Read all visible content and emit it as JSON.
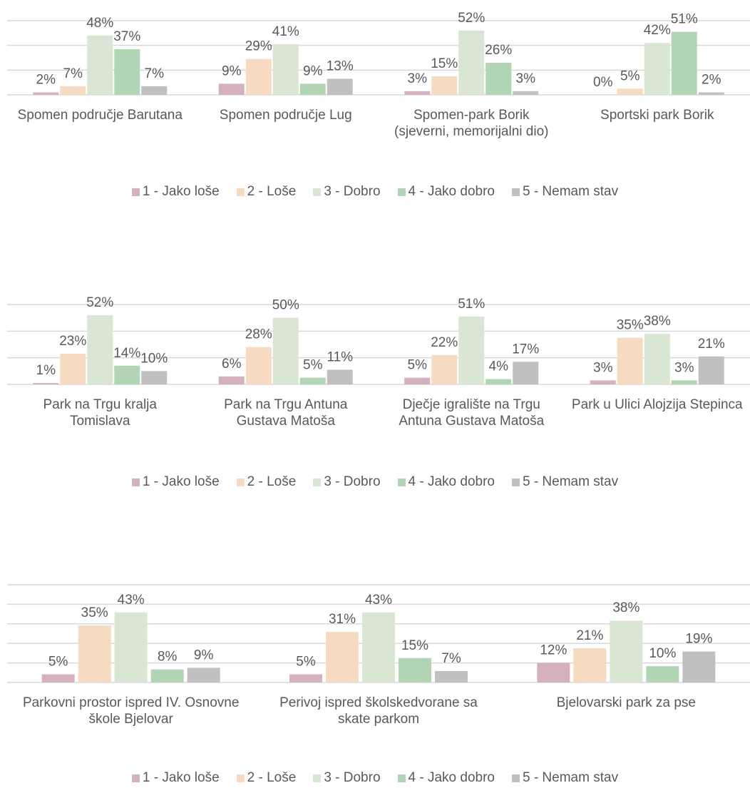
{
  "chart_data": [
    {
      "type": "bar",
      "categories": [
        "Spomen područje Barutana",
        "Spomen područje Lug",
        "Spomen-park Borik (sjeverni, memorijalni dio)",
        "Sportski park Borik"
      ],
      "series": [
        {
          "name": "1 - Jako loše",
          "color": "#d5b1bd",
          "values": [
            2,
            9,
            3,
            0
          ],
          "value_labels": [
            "2%",
            "9%",
            "3%",
            "0%"
          ]
        },
        {
          "name": "2 - Loše",
          "color": "#f6dbc2",
          "values": [
            7,
            29,
            15,
            5
          ],
          "value_labels": [
            "7%",
            "29%",
            "15%",
            "5%"
          ]
        },
        {
          "name": "3 - Dobro",
          "color": "#dae6d4",
          "values": [
            48,
            41,
            52,
            42
          ],
          "value_labels": [
            "48%",
            "41%",
            "52%",
            "42%"
          ]
        },
        {
          "name": "4 - Jako dobro",
          "color": "#b2d6b5",
          "values": [
            37,
            9,
            26,
            51
          ],
          "value_labels": [
            "37%",
            "9%",
            "26%",
            "51%"
          ]
        },
        {
          "name": "5 - Nemam stav",
          "color": "#c1bfbf",
          "values": [
            7,
            13,
            3,
            2
          ],
          "value_labels": [
            "7%",
            "13%",
            "3%",
            "2%"
          ]
        }
      ],
      "ylim": [
        0,
        60
      ],
      "yticks": [
        0,
        20,
        40,
        60
      ],
      "grid": true,
      "legend": "bottom"
    },
    {
      "type": "bar",
      "categories": [
        "Park na Trgu kralja Tomislava",
        "Park na Trgu Antuna Gustava Matoša",
        "Dječje igralište na Trgu Antuna Gustava Matoša",
        "Park u Ulici Alojzija Stepinca"
      ],
      "series": [
        {
          "name": "1 - Jako loše",
          "color": "#d5b1bd",
          "values": [
            1,
            6,
            5,
            3
          ],
          "value_labels": [
            "1%",
            "6%",
            "5%",
            "3%"
          ]
        },
        {
          "name": "2 - Loše",
          "color": "#f6dbc2",
          "values": [
            23,
            28,
            22,
            35
          ],
          "value_labels": [
            "23%",
            "28%",
            "22%",
            "35%"
          ]
        },
        {
          "name": "3 - Dobro",
          "color": "#dae6d4",
          "values": [
            52,
            50,
            51,
            38
          ],
          "value_labels": [
            "52%",
            "50%",
            "51%",
            "38%"
          ]
        },
        {
          "name": "4 - Jako dobro",
          "color": "#b2d6b5",
          "values": [
            14,
            5,
            4,
            3
          ],
          "value_labels": [
            "14%",
            "5%",
            "4%",
            "3%"
          ]
        },
        {
          "name": "5 - Nemam stav",
          "color": "#c1bfbf",
          "values": [
            10,
            11,
            17,
            21
          ],
          "value_labels": [
            "10%",
            "11%",
            "17%",
            "21%"
          ]
        }
      ],
      "ylim": [
        0,
        60
      ],
      "yticks": [
        0,
        20,
        40,
        60
      ],
      "grid": true,
      "legend": "bottom"
    },
    {
      "type": "bar",
      "categories": [
        "Parkovni prostor ispred IV. Osnovne škole Bjelovar",
        "Perivoj ispred školskedvorane sa skate parkom",
        "Bjelovarski park za pse"
      ],
      "series": [
        {
          "name": "1 - Jako loše",
          "color": "#d5b1bd",
          "values": [
            5,
            5,
            12
          ],
          "value_labels": [
            "5%",
            "5%",
            "12%"
          ]
        },
        {
          "name": "2 - Loše",
          "color": "#f6dbc2",
          "values": [
            35,
            31,
            21
          ],
          "value_labels": [
            "35%",
            "31%",
            "21%"
          ]
        },
        {
          "name": "3 - Dobro",
          "color": "#dae6d4",
          "values": [
            43,
            43,
            38
          ],
          "value_labels": [
            "43%",
            "43%",
            "38%"
          ]
        },
        {
          "name": "4 - Jako dobro",
          "color": "#b2d6b5",
          "values": [
            8,
            15,
            10
          ],
          "value_labels": [
            "8%",
            "15%",
            "10%"
          ]
        },
        {
          "name": "5 - Nemam stav",
          "color": "#c1bfbf",
          "values": [
            9,
            7,
            19
          ],
          "value_labels": [
            "9%",
            "7%",
            "19%"
          ]
        }
      ],
      "ylim": [
        0,
        60
      ],
      "yticks": [
        0,
        12,
        24,
        36,
        48,
        60
      ],
      "grid": true,
      "legend": "bottom"
    }
  ]
}
